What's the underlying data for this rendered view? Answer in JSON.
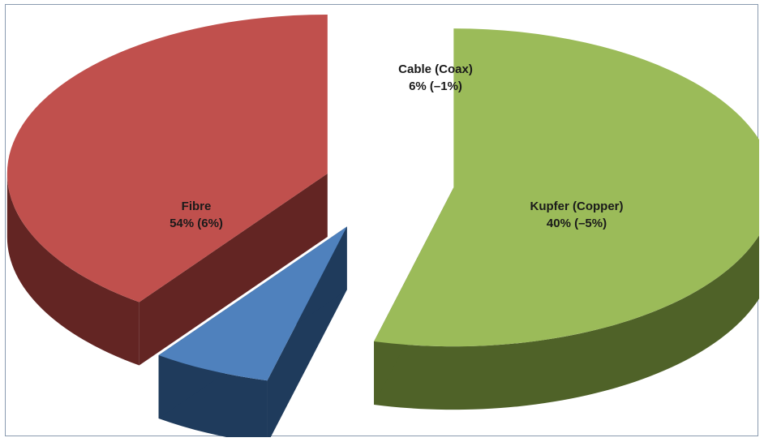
{
  "chart_data": {
    "type": "pie",
    "title": "",
    "style": "3d-exploded",
    "slices": [
      {
        "category": "Fibre",
        "value": 54,
        "change": "6%",
        "line1": "Fibre",
        "line2": "54% (6%)",
        "color_top": "#9bbb59",
        "color_side": "#4f6228"
      },
      {
        "category": "Cable (Coax)",
        "value": 6,
        "change": "–1%",
        "line1": "Cable (Coax)",
        "line2": "6% (–1%)",
        "color_top": "#4f81bd",
        "color_side": "#1f3b5c"
      },
      {
        "category": "Kupfer (Copper)",
        "value": 40,
        "change": "–5%",
        "line1": "Kupfer (Copper)",
        "line2": "40% (–5%)",
        "color_top": "#c0504d",
        "color_side": "#632523"
      }
    ]
  }
}
